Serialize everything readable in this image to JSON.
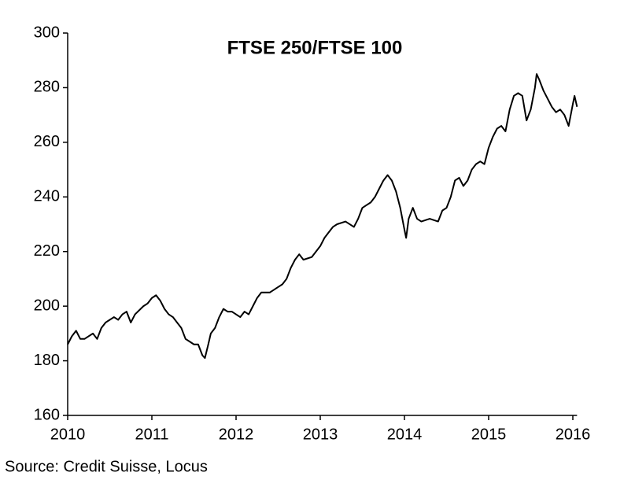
{
  "chart_data": {
    "type": "line",
    "title": "FTSE 250/FTSE 100",
    "source": "Source: Credit Suisse, Locus",
    "xlim": [
      2010,
      2016.05
    ],
    "xticks": [
      2010,
      2011,
      2012,
      2013,
      2014,
      2015,
      2016
    ],
    "ylim": [
      160,
      300
    ],
    "yticks": [
      160,
      180,
      200,
      220,
      240,
      260,
      280,
      300
    ],
    "grid": false,
    "series": [
      {
        "name": "FTSE 250/FTSE 100",
        "color": "#000000",
        "x": [
          2010.0,
          2010.05,
          2010.1,
          2010.15,
          2010.2,
          2010.25,
          2010.3,
          2010.35,
          2010.4,
          2010.45,
          2010.5,
          2010.55,
          2010.6,
          2010.65,
          2010.7,
          2010.75,
          2010.8,
          2010.9,
          2010.95,
          2011.0,
          2011.05,
          2011.1,
          2011.15,
          2011.2,
          2011.25,
          2011.3,
          2011.35,
          2011.4,
          2011.45,
          2011.5,
          2011.55,
          2011.6,
          2011.63,
          2011.67,
          2011.7,
          2011.75,
          2011.8,
          2011.85,
          2011.9,
          2011.95,
          2012.0,
          2012.05,
          2012.1,
          2012.15,
          2012.2,
          2012.25,
          2012.3,
          2012.4,
          2012.5,
          2012.55,
          2012.6,
          2012.65,
          2012.7,
          2012.75,
          2012.8,
          2012.9,
          2013.0,
          2013.05,
          2013.1,
          2013.15,
          2013.2,
          2013.3,
          2013.4,
          2013.45,
          2013.5,
          2013.55,
          2013.6,
          2013.65,
          2013.7,
          2013.75,
          2013.8,
          2013.85,
          2013.9,
          2013.95,
          2014.0,
          2014.02,
          2014.05,
          2014.1,
          2014.15,
          2014.2,
          2014.3,
          2014.4,
          2014.45,
          2014.5,
          2014.55,
          2014.6,
          2014.65,
          2014.7,
          2014.75,
          2014.8,
          2014.85,
          2014.9,
          2014.95,
          2015.0,
          2015.05,
          2015.1,
          2015.15,
          2015.2,
          2015.25,
          2015.3,
          2015.35,
          2015.4,
          2015.45,
          2015.5,
          2015.55,
          2015.57,
          2015.6,
          2015.65,
          2015.7,
          2015.75,
          2015.8,
          2015.85,
          2015.9,
          2015.95,
          2016.0,
          2016.02,
          2016.05
        ],
        "values": [
          186,
          189,
          191,
          188,
          188,
          189,
          190,
          188,
          192,
          194,
          195,
          196,
          195,
          197,
          198,
          194,
          197,
          200,
          201,
          203,
          204,
          202,
          199,
          197,
          196,
          194,
          192,
          188,
          187,
          186,
          186,
          182,
          181,
          186,
          190,
          192,
          196,
          199,
          198,
          198,
          197,
          196,
          198,
          197,
          200,
          203,
          205,
          205,
          207,
          208,
          210,
          214,
          217,
          219,
          217,
          218,
          222,
          225,
          227,
          229,
          230,
          231,
          229,
          232,
          236,
          237,
          238,
          240,
          243,
          246,
          248,
          246,
          242,
          236,
          228,
          225,
          232,
          236,
          232,
          231,
          232,
          231,
          235,
          236,
          240,
          246,
          247,
          244,
          246,
          250,
          252,
          253,
          252,
          258,
          262,
          265,
          266,
          264,
          272,
          277,
          278,
          277,
          268,
          272,
          280,
          285,
          283,
          279,
          276,
          273,
          271,
          272,
          270,
          266,
          274,
          277,
          273
        ]
      }
    ]
  }
}
